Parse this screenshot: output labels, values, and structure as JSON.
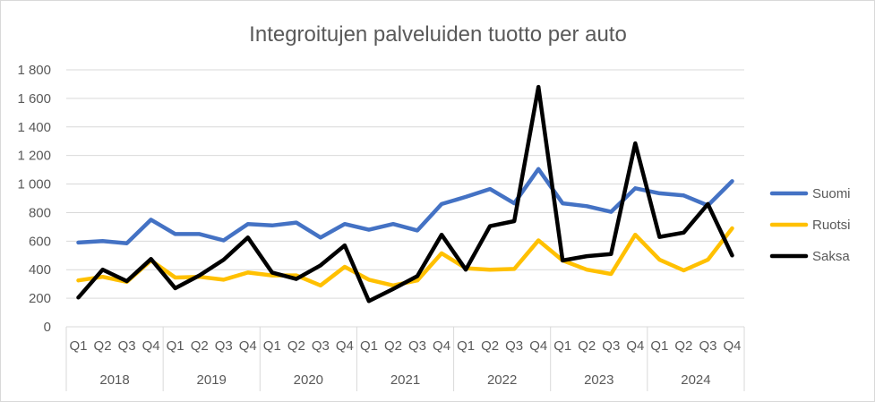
{
  "chart_data": {
    "type": "line",
    "title": "Integroitujen palveluiden tuotto per auto",
    "xlabel": "",
    "ylabel": "",
    "ylim": [
      0,
      1800
    ],
    "yticks": [
      0,
      200,
      400,
      600,
      800,
      1000,
      1200,
      1400,
      1600,
      1800
    ],
    "ytick_labels": [
      "0",
      "200",
      "400",
      "600",
      "800",
      "1 000",
      "1 200",
      "1 400",
      "1 600",
      "1 800"
    ],
    "grid": "horizontal",
    "legend_position": "right",
    "categories": [
      "Q1",
      "Q2",
      "Q3",
      "Q4",
      "Q1",
      "Q2",
      "Q3",
      "Q4",
      "Q1",
      "Q2",
      "Q3",
      "Q4",
      "Q1",
      "Q2",
      "Q3",
      "Q4",
      "Q1",
      "Q2",
      "Q3",
      "Q4",
      "Q1",
      "Q2",
      "Q3",
      "Q4",
      "Q1",
      "Q2",
      "Q3",
      "Q4"
    ],
    "groups": [
      "2018",
      "2019",
      "2020",
      "2021",
      "2022",
      "2023",
      "2024"
    ],
    "series": [
      {
        "name": "Suomi",
        "color": "#4472c4",
        "values": [
          590,
          600,
          585,
          750,
          650,
          650,
          605,
          720,
          710,
          730,
          625,
          720,
          680,
          720,
          675,
          860,
          910,
          965,
          865,
          1105,
          865,
          845,
          805,
          970,
          935,
          920,
          850,
          1020
        ]
      },
      {
        "name": "Ruotsi",
        "color": "#ffc000",
        "values": [
          325,
          350,
          315,
          465,
          345,
          350,
          330,
          380,
          360,
          360,
          290,
          420,
          330,
          290,
          325,
          515,
          410,
          400,
          405,
          605,
          465,
          400,
          370,
          645,
          470,
          395,
          470,
          690
        ]
      },
      {
        "name": "Saksa",
        "color": "#000000",
        "values": [
          205,
          400,
          320,
          475,
          270,
          360,
          470,
          625,
          380,
          335,
          430,
          570,
          180,
          265,
          355,
          645,
          400,
          705,
          740,
          1680,
          465,
          495,
          510,
          1285,
          630,
          660,
          860,
          500
        ]
      }
    ]
  }
}
